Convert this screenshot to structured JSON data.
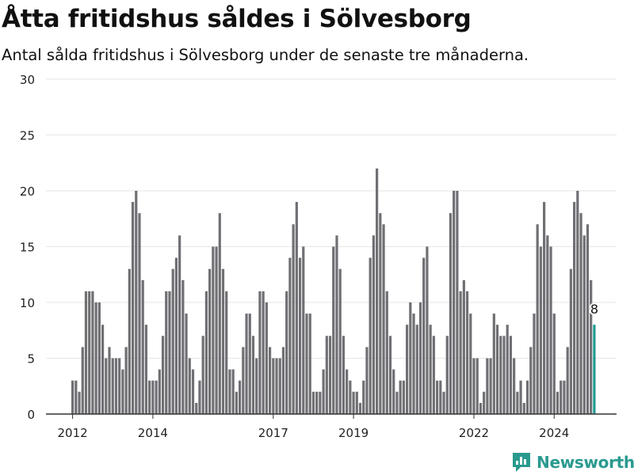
{
  "header": {
    "title": "Åtta fritidshus såldes i Sölvesborg",
    "subtitle": "Antal sålda fritidshus i Sölvesborg under de senaste tre månaderna."
  },
  "brand": {
    "name": "Newsworthy",
    "color": "#2a9a8f"
  },
  "colors": {
    "bar": "#706f74",
    "highlight": "#1f9a94",
    "grid": "#e6e6e6",
    "axis": "#333333"
  },
  "chart_data": {
    "type": "bar",
    "ylim": [
      0,
      30
    ],
    "yticks": [
      0,
      5,
      10,
      15,
      20,
      25,
      30
    ],
    "xticks": [
      {
        "label": "2012",
        "index": 0
      },
      {
        "label": "2014",
        "index": 24
      },
      {
        "label": "2017",
        "index": 60
      },
      {
        "label": "2019",
        "index": 84
      },
      {
        "label": "2022",
        "index": 120
      },
      {
        "label": "2024",
        "index": 144
      }
    ],
    "grid": true,
    "series": [
      {
        "values": [
          3,
          3,
          2,
          6,
          11,
          11,
          11,
          10,
          10,
          8,
          5,
          6,
          5,
          5,
          5,
          4,
          6,
          13,
          19,
          20,
          18,
          12,
          8,
          3,
          3,
          3,
          4,
          7,
          11,
          11,
          13,
          14,
          16,
          12,
          9,
          5,
          4,
          1,
          3,
          7,
          11,
          13,
          15,
          15,
          18,
          13,
          11,
          4,
          4,
          2,
          3,
          6,
          9,
          9,
          7,
          5,
          11,
          11,
          10,
          6,
          5,
          5,
          5,
          6,
          11,
          14,
          17,
          19,
          14,
          15,
          9,
          9,
          2,
          2,
          2,
          4,
          7,
          7,
          15,
          16,
          13,
          7,
          4,
          3,
          2,
          2,
          1,
          3,
          6,
          14,
          16,
          22,
          18,
          17,
          11,
          7,
          4,
          2,
          3,
          3,
          8,
          10,
          9,
          8,
          10,
          14,
          15,
          8,
          7,
          3,
          3,
          2,
          7,
          18,
          20,
          20,
          11,
          12,
          11,
          9,
          5,
          5,
          1,
          2,
          5,
          5,
          9,
          8,
          7,
          7,
          8,
          7,
          5,
          2,
          3,
          1,
          3,
          6,
          9,
          17,
          15,
          19,
          16,
          15,
          9,
          2,
          3,
          3,
          6,
          13,
          19,
          20,
          18,
          16,
          17,
          12,
          8
        ]
      }
    ],
    "highlight": {
      "value": 8,
      "label": "8"
    }
  }
}
